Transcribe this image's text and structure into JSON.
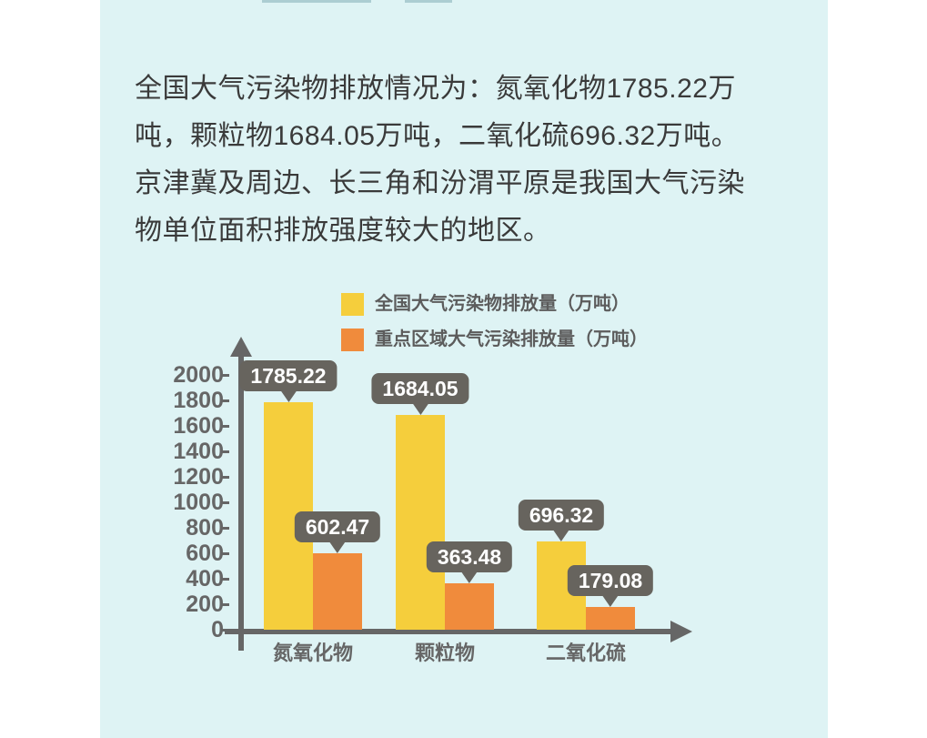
{
  "page": {
    "background": "#ffffff",
    "panel_background": "#def3f4",
    "text_color": "#3a3a3a",
    "axis_color": "#666666",
    "bubble_color": "#67645e"
  },
  "intro": {
    "lines": [
      "全国大气污染物排放情况为：氮氧化物1785.22万",
      "吨，颗粒物1684.05万吨，二氧化硫696.32万吨。",
      "京津冀及周边、长三角和汾渭平原是我国大气污染",
      "物单位面积排放强度较大的地区。"
    ]
  },
  "chart_data": {
    "type": "bar",
    "categories": [
      "氮氧化物",
      "颗粒物",
      "二氧化硫"
    ],
    "series": [
      {
        "name": "全国大气污染物排放量（万吨）",
        "color": "#f5ce3c",
        "values": [
          1785.22,
          1684.05,
          696.32
        ]
      },
      {
        "name": "重点区域大气污染排放量（万吨）",
        "color": "#f08b3c",
        "values": [
          602.47,
          363.48,
          179.08
        ]
      }
    ],
    "value_labels": [
      [
        "1785.22",
        "1684.05",
        "696.32"
      ],
      [
        "602.47",
        "363.48",
        "179.08"
      ]
    ],
    "yticks": [
      0,
      200,
      400,
      600,
      800,
      1000,
      1200,
      1400,
      1600,
      1800,
      2000
    ],
    "ylim": [
      0,
      2000
    ],
    "xlabel": "",
    "ylabel": "",
    "grid": false,
    "legend_position": "top-center"
  }
}
